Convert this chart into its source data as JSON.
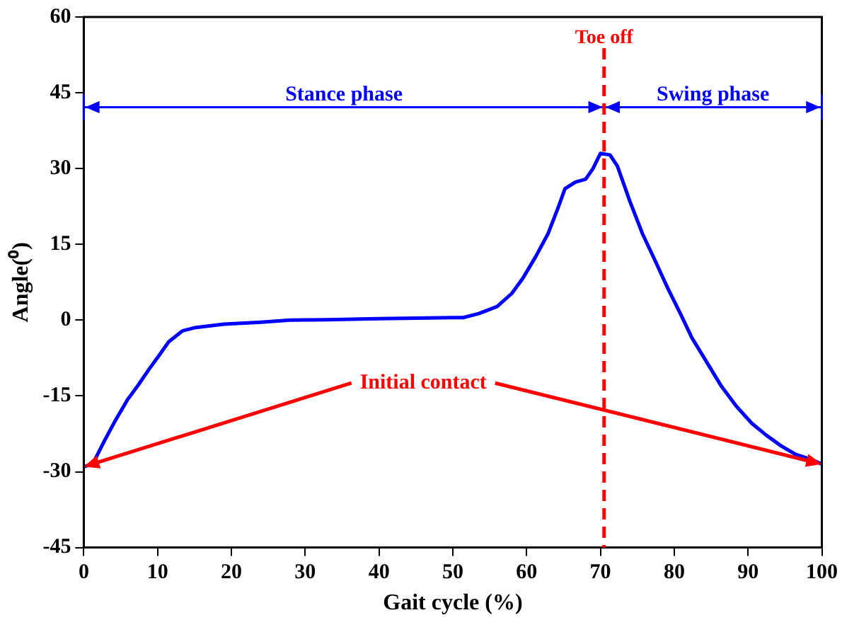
{
  "chart_data": {
    "type": "line",
    "xlabel": "Gait cycle (%)",
    "ylabel": "Angle(⁰)",
    "xlim": [
      0,
      100
    ],
    "xticks": [
      0,
      10,
      20,
      30,
      40,
      50,
      60,
      70,
      80,
      90,
      100
    ],
    "ylim": [
      -45,
      60
    ],
    "yticks": [
      -45,
      -30,
      -15,
      0,
      15,
      30,
      45,
      60
    ],
    "grid": false,
    "legend": false,
    "marker": "none",
    "line_style": "solid",
    "series": [
      {
        "color": "#0000ff",
        "x": [
          0,
          1.2,
          2.8,
          4.3,
          5.9,
          7.4,
          8.9,
          10.2,
          11.5,
          13.4,
          15,
          19,
          24,
          28,
          33,
          40,
          45,
          50,
          51.4,
          53.5,
          56,
          58,
          59.5,
          61.2,
          62.9,
          64.2,
          65.2,
          66.6,
          68,
          69,
          70,
          71.3,
          72.3,
          74,
          75.7,
          77.5,
          79.1,
          80.8,
          82.4,
          84.4,
          86.4,
          88.4,
          90.5,
          92.5,
          94.5,
          96.5,
          98.6,
          100
        ],
        "values": [
          -29,
          -28.5,
          -23.9,
          -19.8,
          -15.8,
          -12.8,
          -9.6,
          -7,
          -4.3,
          -2.1,
          -1.5,
          -0.8,
          -0.4,
          0,
          0.1,
          0.3,
          0.4,
          0.5,
          0.5,
          1.3,
          2.7,
          5.3,
          8.3,
          12.5,
          17.1,
          22,
          26,
          27.3,
          27.9,
          30,
          33,
          32.7,
          30.5,
          23.5,
          17.1,
          11.5,
          6.4,
          1.4,
          -3.5,
          -8.3,
          -13.1,
          -17,
          -20.4,
          -22.8,
          -24.9,
          -26.6,
          -27.6,
          -28.5
        ]
      }
    ],
    "ref_lines": [
      {
        "axis": "x",
        "value": 70.5,
        "label": "Toe off",
        "color": "#ff0000",
        "line_style": "dashed"
      }
    ],
    "annotations": [
      "Stance phase",
      "Swing phase",
      {
        "text": "Initial contact",
        "x": 0,
        "y": -29
      }
    ]
  }
}
